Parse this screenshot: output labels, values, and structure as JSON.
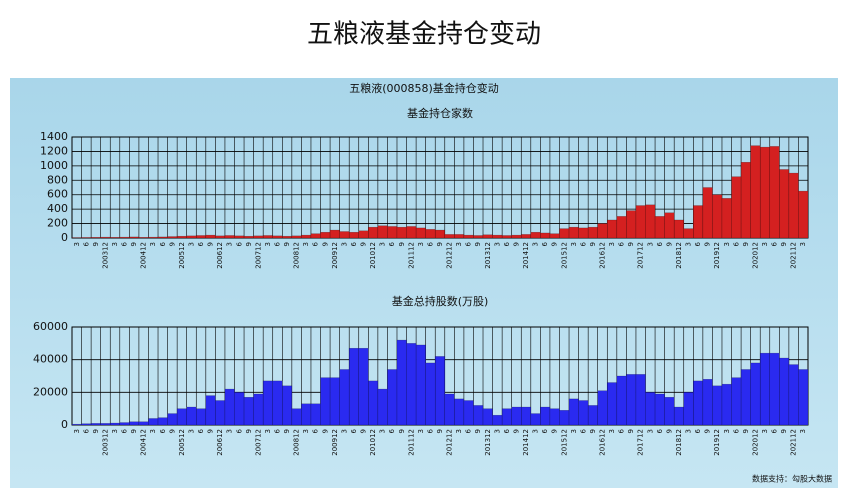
{
  "title": "五粮液基金持仓变动",
  "subtitle": "五粮液(000858)基金持仓变动",
  "footer": "数据支持：勾股大数据",
  "chart_data": [
    {
      "type": "bar",
      "title": "基金持仓家数",
      "color": "#d42020",
      "grid": true,
      "ylim": [
        0,
        1400
      ],
      "yticks": [
        0,
        200,
        400,
        600,
        800,
        1000,
        1200,
        1400
      ],
      "categories": [
        "3",
        "6",
        "9",
        "200312",
        "3",
        "6",
        "9",
        "200412",
        "3",
        "6",
        "9",
        "200512",
        "3",
        "6",
        "9",
        "200612",
        "3",
        "6",
        "9",
        "200712",
        "3",
        "6",
        "9",
        "200812",
        "3",
        "6",
        "9",
        "200912",
        "3",
        "6",
        "9",
        "201012",
        "3",
        "6",
        "9",
        "201112",
        "3",
        "6",
        "9",
        "201212",
        "3",
        "6",
        "9",
        "201312",
        "3",
        "6",
        "9",
        "201412",
        "3",
        "6",
        "9",
        "201512",
        "3",
        "6",
        "9",
        "201612",
        "3",
        "6",
        "9",
        "201712",
        "3",
        "6",
        "9",
        "201812",
        "3",
        "6",
        "9",
        "201912",
        "3",
        "6",
        "9",
        "202012",
        "3",
        "6",
        "9",
        "202112",
        "3"
      ],
      "values": [
        5,
        8,
        10,
        12,
        10,
        12,
        15,
        10,
        12,
        15,
        20,
        25,
        30,
        35,
        40,
        30,
        35,
        30,
        25,
        30,
        35,
        30,
        25,
        30,
        40,
        60,
        80,
        110,
        90,
        80,
        100,
        150,
        170,
        160,
        150,
        160,
        140,
        120,
        110,
        50,
        50,
        40,
        35,
        45,
        40,
        35,
        40,
        50,
        80,
        70,
        60,
        130,
        150,
        140,
        150,
        200,
        250,
        300,
        380,
        450,
        460,
        300,
        350,
        250,
        130,
        450,
        700,
        600,
        550,
        850,
        1050,
        1280,
        1260,
        1270,
        950,
        900,
        650
      ]
    },
    {
      "type": "bar",
      "title": "基金总持股数(万股)",
      "color": "#2a2af0",
      "grid": true,
      "ylim": [
        0,
        60000
      ],
      "yticks": [
        0,
        20000,
        40000,
        60000
      ],
      "categories": [
        "3",
        "6",
        "9",
        "200312",
        "3",
        "6",
        "9",
        "200412",
        "3",
        "6",
        "9",
        "200512",
        "3",
        "6",
        "9",
        "200612",
        "3",
        "6",
        "9",
        "200712",
        "3",
        "6",
        "9",
        "200812",
        "3",
        "6",
        "9",
        "200912",
        "3",
        "6",
        "9",
        "201012",
        "3",
        "6",
        "9",
        "201112",
        "3",
        "6",
        "9",
        "201212",
        "3",
        "6",
        "9",
        "201312",
        "3",
        "6",
        "9",
        "201412",
        "3",
        "6",
        "9",
        "201512",
        "3",
        "6",
        "9",
        "201612",
        "3",
        "6",
        "9",
        "201712",
        "3",
        "6",
        "9",
        "201812",
        "3",
        "6",
        "9",
        "201912",
        "3",
        "6",
        "9",
        "202012",
        "3",
        "6",
        "9",
        "202112",
        "3"
      ],
      "values": [
        500,
        800,
        1000,
        1000,
        1200,
        1500,
        2000,
        2000,
        4000,
        4500,
        7000,
        10000,
        11000,
        10000,
        18000,
        15000,
        22000,
        20000,
        17000,
        19000,
        27000,
        27000,
        24000,
        10000,
        13000,
        13000,
        29000,
        29000,
        34000,
        47000,
        47000,
        27000,
        22000,
        34000,
        52000,
        50000,
        49000,
        38000,
        42000,
        19000,
        16000,
        15000,
        12000,
        10000,
        6000,
        10000,
        11000,
        11000,
        7000,
        11000,
        10000,
        9000,
        16000,
        15000,
        12000,
        21000,
        26000,
        30000,
        31000,
        31000,
        20000,
        19000,
        17000,
        11000,
        20000,
        27000,
        28000,
        24000,
        25000,
        29000,
        34000,
        38000,
        44000,
        44000,
        41000,
        37000,
        34000
      ]
    }
  ]
}
